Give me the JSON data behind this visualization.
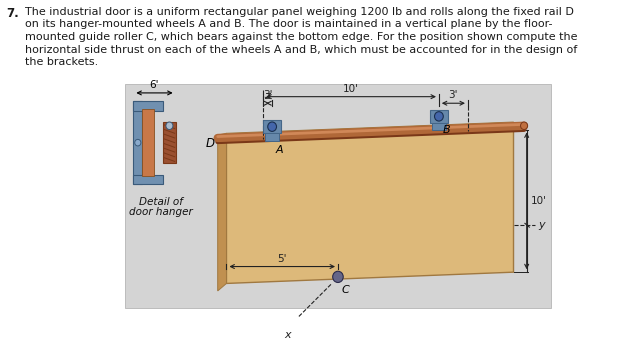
{
  "bg_color": "#d4d4d4",
  "text_color": "#1a1a1a",
  "problem_number": "7.",
  "problem_text_lines": [
    "The industrial door is a uniform rectangular panel weighing 1200 lb and rolls along the fixed rail D",
    "on its hanger-mounted wheels A and B. The door is maintained in a vertical plane by the floor-",
    "mounted guide roller C, which bears against the bottom edge. For the position shown compute the",
    "horizontal side thrust on each of the wheels A and B, which must be accounted for in the design of",
    "the brackets."
  ],
  "door_face_color": "#ddb97a",
  "door_top_color": "#c8a060",
  "door_left_color": "#c09050",
  "door_edge_color": "#a07840",
  "rail_color": "#b06838",
  "rail_highlight": "#d08858",
  "bracket_color": "#6688aa",
  "bracket_dark": "#446688",
  "wheel_color": "#4466aa",
  "hanger_c_color": "#7090b0",
  "hanger_door_color": "#c87848",
  "hanger_mech_color": "#9a5030",
  "hanger_mech_hatch": "#7a3818",
  "detail_bg": "#d4d4d4",
  "dim_color": "#222222",
  "roller_c_color": "#666688",
  "rail_end_color": "#c07040"
}
